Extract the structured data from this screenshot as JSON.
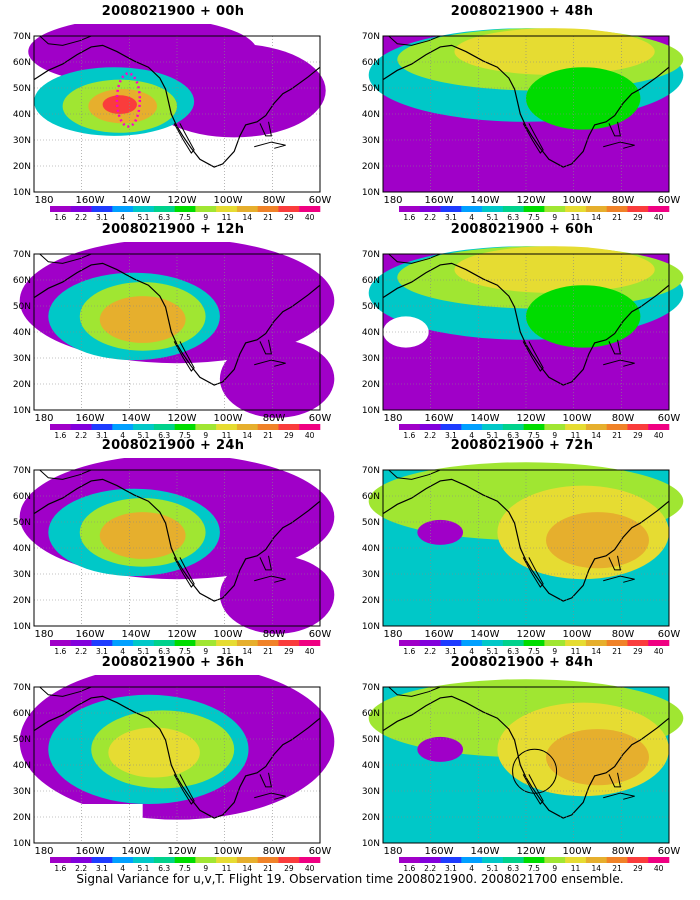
{
  "caption": "Signal Variance for u,v,T. Flight 19. Observation time 2008021900. 2008021700 ensemble.",
  "lat_ticks": [
    "70N",
    "60N",
    "50N",
    "40N",
    "30N",
    "20N",
    "10N"
  ],
  "lon_ticks": [
    "180",
    "160W",
    "140W",
    "120W",
    "100W",
    "80W",
    "60W"
  ],
  "colorbar": {
    "colors": [
      "#a000c8",
      "#8200dc",
      "#1e3cff",
      "#00a0ff",
      "#00c8c8",
      "#00d28c",
      "#00dc00",
      "#a0e632",
      "#e6dc32",
      "#e6af2d",
      "#f08228",
      "#fa3c3c",
      "#f00082"
    ],
    "labels": [
      "1.6",
      "2.2",
      "3.1",
      "4",
      "5.1",
      "6.3",
      "7.5",
      "9",
      "11",
      "14",
      "21",
      "29",
      "40"
    ]
  },
  "panels": [
    {
      "id": "p00",
      "title": "2008021900 + 00h",
      "col": 0,
      "row": 0
    },
    {
      "id": "p48",
      "title": "2008021900 + 48h",
      "col": 1,
      "row": 0
    },
    {
      "id": "p12",
      "title": "2008021900 + 12h",
      "col": 0,
      "row": 1
    },
    {
      "id": "p60",
      "title": "2008021900 + 60h",
      "col": 1,
      "row": 1
    },
    {
      "id": "p24",
      "title": "2008021900 + 24h",
      "col": 0,
      "row": 2
    },
    {
      "id": "p72",
      "title": "2008021900 + 72h",
      "col": 1,
      "row": 2
    },
    {
      "id": "p36",
      "title": "2008021900 + 36h",
      "col": 0,
      "row": 3
    },
    {
      "id": "p84",
      "title": "2008021900 + 84h",
      "col": 1,
      "row": 3
    }
  ]
}
